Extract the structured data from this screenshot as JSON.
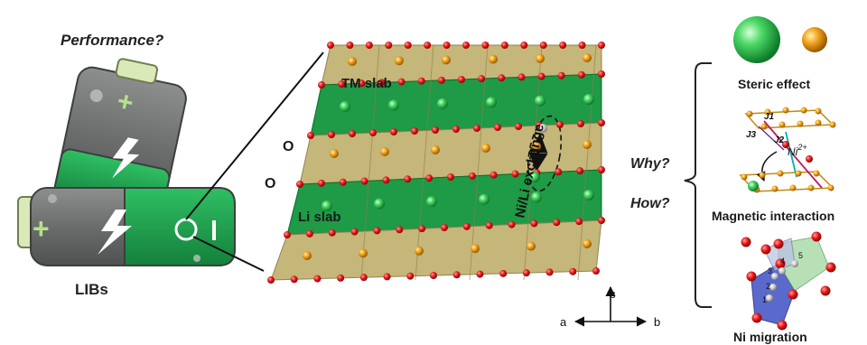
{
  "left": {
    "question": "Performance?",
    "battery_label": "LIBs"
  },
  "lattice": {
    "tm_slab_label": "TM slab",
    "li_slab_label": "Li slab",
    "o_label_1": "O",
    "o_label_2": "O",
    "exchange_label": "Ni/Li exchange"
  },
  "axes": {
    "a": "a",
    "b": "b",
    "c": "c"
  },
  "middle": {
    "why": "Why?",
    "how": "How?"
  },
  "right": {
    "steric_label": "Steric effect",
    "magnetic_label": "Magnetic interaction",
    "migration_label": "Ni migration",
    "j1": "J1",
    "j2": "J2",
    "j3": "J3",
    "ni_label": "Ni",
    "ni_charge": "2+",
    "migration_steps": [
      "1",
      "2",
      "3",
      "4",
      "5"
    ]
  },
  "colors": {
    "tm_layer": "#c8b87a",
    "li_layer": "#22a04a",
    "oxygen": "#e11b1b",
    "tm_atom": "#f0a020",
    "li_atom": "#2fd05a",
    "battery_gray": "#6f7270",
    "battery_green": "#22a24f"
  }
}
